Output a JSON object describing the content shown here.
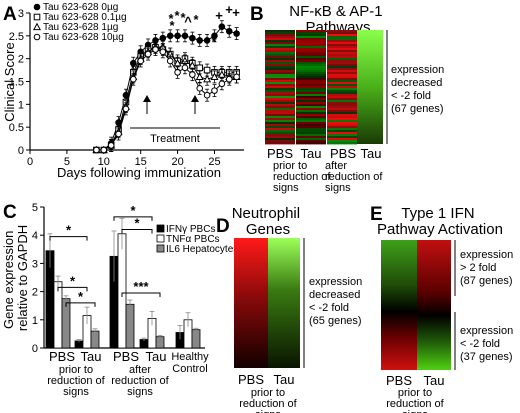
{
  "panels": {
    "A": {
      "label": "A",
      "chart_data": {
        "type": "line",
        "ylabel": "Clinical Score",
        "xlabel": "Days following immunization",
        "xlim": [
          0,
          29
        ],
        "ylim": [
          0,
          3
        ],
        "xticks": [
          "0",
          "5",
          "10",
          "15",
          "20",
          "25"
        ],
        "yticks": [
          "0",
          "0.5",
          "1",
          "1.5",
          "2",
          "2.5",
          "3"
        ],
        "x": [
          9,
          10,
          11,
          12,
          13,
          14,
          15,
          16,
          17,
          18,
          19,
          20,
          21,
          22,
          23,
          24,
          25,
          26,
          27,
          28
        ],
        "series": [
          {
            "name": "Tau 623-628 0µg",
            "marker": "circle-filled",
            "values": [
              0,
              0,
              0.15,
              0.6,
              1.2,
              1.9,
              2.15,
              2.3,
              2.4,
              2.45,
              2.5,
              2.5,
              2.5,
              2.45,
              2.4,
              2.4,
              2.5,
              2.7,
              2.6,
              2.55
            ]
          },
          {
            "name": "Tau 623-628 0.1µg",
            "marker": "square-open",
            "values": [
              0,
              0,
              0.1,
              0.45,
              1.05,
              1.7,
              2.05,
              2.2,
              2.25,
              2.2,
              2.1,
              1.95,
              2.0,
              1.9,
              1.8,
              1.75,
              1.7,
              1.7,
              1.7,
              1.7
            ]
          },
          {
            "name": "Tau 623-628 1µg",
            "marker": "triangle-open",
            "values": [
              0,
              0,
              0.1,
              0.4,
              0.95,
              1.6,
              2.0,
              2.15,
              2.25,
              2.25,
              2.1,
              1.9,
              1.95,
              1.85,
              1.6,
              1.55,
              1.6,
              1.65,
              1.6,
              1.6
            ]
          },
          {
            "name": "Tau 623-628 10µg",
            "marker": "circle-open",
            "values": [
              0,
              0,
              0.1,
              0.35,
              0.9,
              1.55,
              1.95,
              2.1,
              2.2,
              2.15,
              1.95,
              1.7,
              1.8,
              1.65,
              1.35,
              1.2,
              1.3,
              1.45,
              1.55,
              1.6
            ]
          }
        ],
        "treatment_label": "Treatment",
        "treatment_start_day": 16,
        "treatment_end_day": 23,
        "significance_marks": [
          "*",
          "*",
          "*",
          "^",
          "*",
          "*",
          "*",
          "*",
          "*",
          "+",
          "+",
          "+"
        ]
      }
    },
    "B": {
      "label": "B",
      "title": "NF-κB & AP-1 Pathways",
      "columns": [
        "PBS",
        "Tau",
        "PBS",
        "Tau"
      ],
      "group_labels": [
        "prior to reduction of signs",
        "after reduction of signs"
      ],
      "annotation": [
        "expression",
        "decreased",
        "< -2 fold",
        "(67 genes)"
      ]
    },
    "C": {
      "label": "C",
      "chart_data": {
        "type": "bar",
        "ylabel": "Gene expression relative to GAPDH",
        "ylim": [
          0,
          5
        ],
        "yticks": [
          "0",
          "1",
          "2",
          "3",
          "4",
          "5"
        ],
        "categories": [
          "PBS",
          "Tau",
          "PBS",
          "Tau",
          "Healthy Control"
        ],
        "group_labels": [
          "prior to reduction of signs",
          "after reduction of signs"
        ],
        "series": [
          {
            "name": "IFNγ PBCs",
            "fill": "#000000",
            "values": [
              3.45,
              0.25,
              3.25,
              0.3,
              0.55
            ],
            "errors": [
              0.6,
              0.05,
              0.9,
              0.05,
              0.25
            ]
          },
          {
            "name": "TNFα PBCs",
            "fill": "#ffffff",
            "values": [
              2.35,
              1.15,
              4.05,
              1.05,
              1.0
            ],
            "errors": [
              0.2,
              0.3,
              0.55,
              0.25,
              0.25
            ]
          },
          {
            "name": "IL6 Hepatocytes",
            "fill": "#888888",
            "values": [
              1.75,
              0.6,
              1.55,
              0.4,
              0.65
            ],
            "errors": [
              0.1,
              0.08,
              0.15,
              0.05,
              0.05
            ]
          }
        ],
        "significance": [
          "*",
          "*",
          "*",
          "*",
          "*",
          "***"
        ]
      }
    },
    "D": {
      "label": "D",
      "title": "Neutrophil Genes",
      "columns": [
        "PBS",
        "Tau"
      ],
      "group_label": "prior to reduction of signs",
      "annotation": [
        "expression",
        "decreased",
        "< -2 fold",
        "(65 genes)"
      ]
    },
    "E": {
      "label": "E",
      "title": "Type 1 IFN Pathway Activation",
      "columns": [
        "PBS",
        "Tau"
      ],
      "group_label": "prior to reduction of signs",
      "annotation_up": [
        "expression",
        "> 2 fold",
        "(87 genes)"
      ],
      "annotation_down": [
        "expression",
        "< -2 fold",
        "(37 genes)"
      ]
    }
  },
  "colors": {
    "heat_red": "#e01010",
    "heat_green": "#3cc000",
    "heat_black": "#000000",
    "bar_gray": "#888888"
  }
}
